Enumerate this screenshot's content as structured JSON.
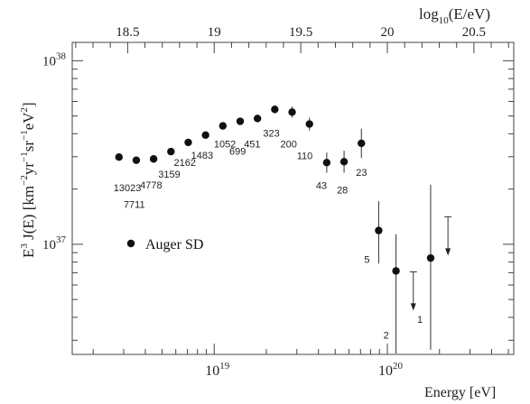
{
  "chart_data": {
    "type": "scatter",
    "series_name": "Auger SD",
    "xlabel": "Energy [eV]",
    "ylabel_text": "E",
    "ylabel_sup3": "3",
    "ylabel_rest": " J(E) [km",
    "ylabel_sup_m2": "−2",
    "ylabel_yr": "yr",
    "ylabel_sup_m1a": "−1",
    "ylabel_sr": "sr",
    "ylabel_sup_m1b": "−1",
    "ylabel_ev": "eV",
    "ylabel_sup_2": "2",
    "ylabel_close": "]",
    "top_axis_label_prefix": "log",
    "top_axis_label_sub": "10",
    "top_axis_label_suffix": "(E/eV)",
    "x_scale": "log10",
    "xlim_log10": [
      18.18,
      20.73
    ],
    "y_scale": "log10",
    "ylim_log10": [
      36.4,
      38.1
    ],
    "bottom_ticks": [
      {
        "base": "10",
        "exp": "19",
        "log10": 19
      },
      {
        "base": "10",
        "exp": "20",
        "log10": 20
      }
    ],
    "top_ticks": [
      {
        "label": "18.5",
        "value": 18.5
      },
      {
        "label": "19",
        "value": 19.0
      },
      {
        "label": "19.5",
        "value": 19.5
      },
      {
        "label": "20",
        "value": 20.0
      },
      {
        "label": "20.5",
        "value": 20.5
      }
    ],
    "y_ticks": [
      {
        "base": "10",
        "exp": "38",
        "log10": 38
      },
      {
        "base": "10",
        "exp": "37",
        "log10": 37
      }
    ],
    "points": [
      {
        "x_log10": 18.45,
        "y_log10": 37.475,
        "err_log10": 0.01,
        "count": "13023",
        "count_dx": -6,
        "count_dy": 38
      },
      {
        "x_log10": 18.55,
        "y_log10": 37.458,
        "err_log10": 0.01,
        "count": "7711",
        "count_dx": -14,
        "count_dy": 53
      },
      {
        "x_log10": 18.65,
        "y_log10": 37.465,
        "err_log10": 0.01,
        "count": "4778",
        "count_dx": -15,
        "count_dy": 33
      },
      {
        "x_log10": 18.75,
        "y_log10": 37.505,
        "err_log10": 0.012,
        "count": "3159",
        "count_dx": -14,
        "count_dy": 29
      },
      {
        "x_log10": 18.85,
        "y_log10": 37.555,
        "err_log10": 0.012,
        "count": "2162",
        "count_dx": -16,
        "count_dy": 26
      },
      {
        "x_log10": 18.95,
        "y_log10": 37.595,
        "err_log10": 0.014,
        "count": "1483",
        "count_dx": -16,
        "count_dy": 26
      },
      {
        "x_log10": 19.05,
        "y_log10": 37.645,
        "err_log10": 0.016,
        "count": "1052",
        "count_dx": -10,
        "count_dy": 24
      },
      {
        "x_log10": 19.15,
        "y_log10": 37.67,
        "err_log10": 0.018,
        "count": "699",
        "count_dx": -12,
        "count_dy": 37
      },
      {
        "x_log10": 19.25,
        "y_log10": 37.685,
        "err_log10": 0.02,
        "count": "451",
        "count_dx": -15,
        "count_dy": 32
      },
      {
        "x_log10": 19.35,
        "y_log10": 37.735,
        "err_log10": 0.022,
        "count": "323",
        "count_dx": -13,
        "count_dy": 30
      },
      {
        "x_log10": 19.45,
        "y_log10": 37.72,
        "err_log10": 0.03,
        "count": "200",
        "count_dx": -13,
        "count_dy": 39
      },
      {
        "x_log10": 19.55,
        "y_log10": 37.655,
        "err_log10": 0.035,
        "count": "110",
        "count_dx": -14,
        "count_dy": 39
      },
      {
        "x_log10": 19.65,
        "y_log10": 37.445,
        "err_log10": 0.055,
        "count": "43",
        "count_dx": -12,
        "count_dy": 29
      },
      {
        "x_log10": 19.75,
        "y_log10": 37.45,
        "err_log10": 0.06,
        "count": "28",
        "count_dx": -8,
        "count_dy": 35
      },
      {
        "x_log10": 19.85,
        "y_log10": 37.55,
        "err_log10": 0.08,
        "count": "23",
        "count_dx": -6,
        "count_dy": 36
      },
      {
        "x_log10": 19.95,
        "y_log10": 37.075,
        "err_lo_log10": 0.18,
        "err_hi_log10": 0.16,
        "count": "5",
        "count_dx": -16,
        "count_dy": 36
      },
      {
        "x_log10": 20.05,
        "y_log10": 36.855,
        "err_lo_log10": 0.45,
        "err_hi_log10": 0.2,
        "count": "2",
        "count_dx": -14,
        "count_dy": 75
      },
      {
        "x_log10": 20.25,
        "y_log10": 36.925,
        "err_lo_log10": 0.5,
        "err_hi_log10": 0.4,
        "count": "1",
        "count_dx": -15,
        "count_dy": 72
      }
    ],
    "upper_limits": [
      {
        "x_log10": 20.15,
        "y_log10": 36.85
      },
      {
        "x_log10": 20.35,
        "y_log10": 37.15
      }
    ]
  }
}
